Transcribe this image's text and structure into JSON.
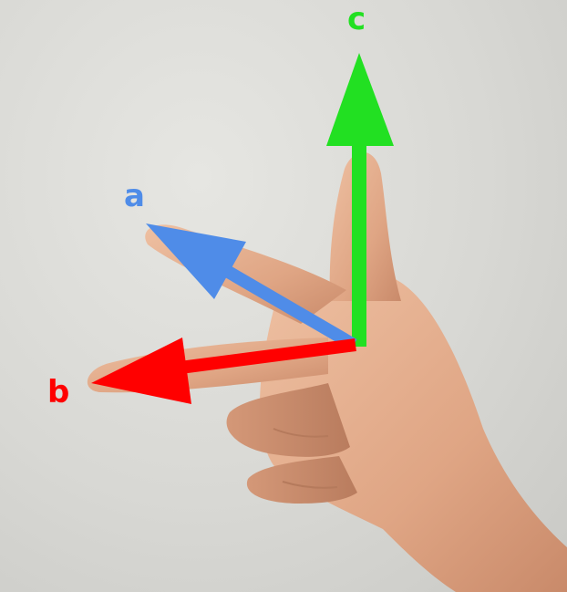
{
  "vectors": [
    {
      "label": "a",
      "color": "#4f8ce8"
    },
    {
      "label": "b",
      "color": "#ff0000"
    },
    {
      "label": "c",
      "color": "#22e022"
    }
  ],
  "hand": {
    "skin_color": "#e6b090",
    "gesture": "right-hand-rule"
  }
}
